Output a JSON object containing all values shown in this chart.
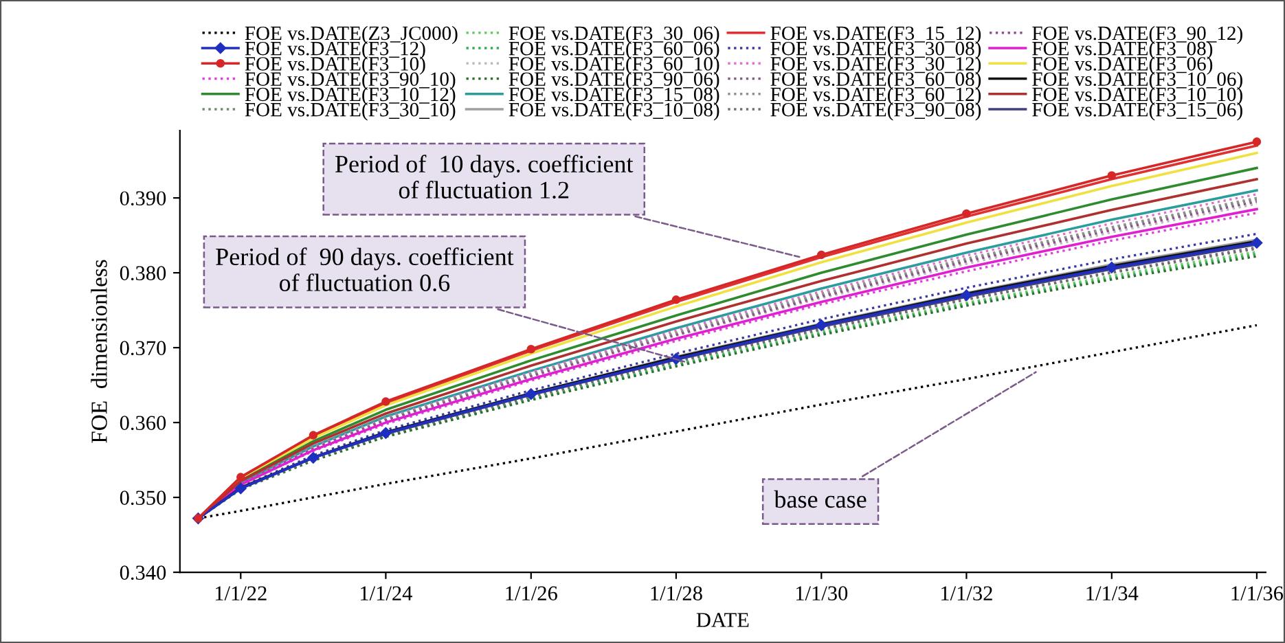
{
  "chart_data": {
    "type": "line",
    "xlabel": "DATE",
    "ylabel": "FOE  dimensionless",
    "x": [
      "2021-06-01",
      "2022-01-01",
      "2023-01-01",
      "2024-01-01",
      "2026-01-01",
      "2028-01-01",
      "2030-01-01",
      "2032-01-01",
      "2034-01-01",
      "2036-01-01"
    ],
    "xlim": [
      "2021-03-01",
      "2036-02-15"
    ],
    "xticks": [
      {
        "value": "2022-01-01",
        "label": "1/1/22"
      },
      {
        "value": "2024-01-01",
        "label": "1/1/24"
      },
      {
        "value": "2026-01-01",
        "label": "1/1/26"
      },
      {
        "value": "2028-01-01",
        "label": "1/1/28"
      },
      {
        "value": "2030-01-01",
        "label": "1/1/30"
      },
      {
        "value": "2032-01-01",
        "label": "1/1/32"
      },
      {
        "value": "2034-01-01",
        "label": "1/1/34"
      },
      {
        "value": "2036-01-01",
        "label": "1/1/36"
      }
    ],
    "ylim": [
      0.34,
      0.399
    ],
    "yticks": [
      {
        "value": 0.34,
        "label": "0.340"
      },
      {
        "value": 0.35,
        "label": "0.350"
      },
      {
        "value": 0.36,
        "label": "0.360"
      },
      {
        "value": 0.37,
        "label": "0.370"
      },
      {
        "value": 0.38,
        "label": "0.380"
      },
      {
        "value": 0.39,
        "label": "0.390"
      }
    ],
    "grid": false,
    "legend": "top",
    "series": [
      {
        "name": "FOE vs.DATE(Z3_JC000)",
        "color": "#000000",
        "line_style": "dotted",
        "values": [
          0.3472,
          0.3482,
          0.35,
          0.3518,
          0.3552,
          0.3588,
          0.3624,
          0.3658,
          0.3694,
          0.373
        ]
      },
      {
        "name": "FOE vs.DATE(F3_12)",
        "color": "#1f2fbf",
        "marker": "diamond",
        "values": [
          0.3472,
          0.3512,
          0.3553,
          0.3586,
          0.3638,
          0.3685,
          0.373,
          0.377,
          0.3807,
          0.384
        ]
      },
      {
        "name": "FOE vs.DATE(F3_10)",
        "color": "#d62728",
        "marker": "circle",
        "values": [
          0.3472,
          0.3527,
          0.3583,
          0.3628,
          0.3698,
          0.3764,
          0.3824,
          0.3879,
          0.393,
          0.3975
        ]
      },
      {
        "name": "FOE vs.DATE(F3_90_10)",
        "color": "#e040e0",
        "line_style": "dotted",
        "values": [
          0.3472,
          0.3517,
          0.3562,
          0.3598,
          0.3656,
          0.3709,
          0.3758,
          0.3802,
          0.3843,
          0.388
        ]
      },
      {
        "name": "FOE vs.DATE(F3_10_12)",
        "color": "#2e8b2e",
        "values": [
          0.3472,
          0.3523,
          0.3575,
          0.3617,
          0.3683,
          0.3743,
          0.38,
          0.3851,
          0.3898,
          0.394
        ]
      },
      {
        "name": "FOE vs.DATE(F3_30_10)",
        "color": "#6b8e6b",
        "line_style": "dotted",
        "values": [
          0.3472,
          0.3519,
          0.3566,
          0.3604,
          0.3664,
          0.3719,
          0.377,
          0.3817,
          0.386,
          0.3898
        ]
      },
      {
        "name": "FOE vs.DATE(F3_30_06)",
        "color": "#66cc66",
        "line_style": "dotted",
        "values": [
          0.3472,
          0.3511,
          0.355,
          0.3582,
          0.3632,
          0.3678,
          0.3721,
          0.376,
          0.3796,
          0.3828
        ]
      },
      {
        "name": "FOE vs.DATE(F3_60_06)",
        "color": "#33aa55",
        "line_style": "dotted",
        "values": [
          0.3472,
          0.3511,
          0.355,
          0.3581,
          0.3631,
          0.3677,
          0.3719,
          0.3758,
          0.3793,
          0.3825
        ]
      },
      {
        "name": "FOE vs.DATE(F3_60_10)",
        "color": "#bbbbbb",
        "line_style": "dotted",
        "values": [
          0.3472,
          0.3518,
          0.3564,
          0.3602,
          0.3661,
          0.3716,
          0.3766,
          0.3812,
          0.3854,
          0.3892
        ]
      },
      {
        "name": "FOE vs.DATE(F3_90_06)",
        "color": "#2f6f2f",
        "line_style": "dotted",
        "values": [
          0.3472,
          0.3511,
          0.3549,
          0.3581,
          0.363,
          0.3675,
          0.3717,
          0.3756,
          0.3791,
          0.3822
        ]
      },
      {
        "name": "FOE vs.DATE(F3_15_08)",
        "color": "#2a9d9d",
        "values": [
          0.3472,
          0.352,
          0.3568,
          0.3608,
          0.3669,
          0.3726,
          0.3779,
          0.3827,
          0.3871,
          0.391
        ]
      },
      {
        "name": "FOE vs.DATE(F3_10_08)",
        "color": "#a0a0a0",
        "values": [
          0.3472,
          0.3513,
          0.3554,
          0.3587,
          0.3639,
          0.3688,
          0.3732,
          0.3773,
          0.3811,
          0.3844
        ]
      },
      {
        "name": "FOE vs.DATE(F3_15_12)",
        "color": "#e03030",
        "values": [
          0.3472,
          0.3527,
          0.3582,
          0.3626,
          0.3696,
          0.3761,
          0.3821,
          0.3875,
          0.3925,
          0.397
        ]
      },
      {
        "name": "FOE vs.DATE(F3_30_08)",
        "color": "#3a3aa0",
        "line_style": "dotted",
        "values": [
          0.3472,
          0.3514,
          0.3556,
          0.359,
          0.3643,
          0.3692,
          0.3738,
          0.378,
          0.3818,
          0.3852
        ]
      },
      {
        "name": "FOE vs.DATE(F3_30_12)",
        "color": "#e070d0",
        "line_style": "dotted",
        "values": [
          0.3472,
          0.352,
          0.3567,
          0.3606,
          0.3667,
          0.3723,
          0.3775,
          0.3823,
          0.3866,
          0.3905
        ]
      },
      {
        "name": "FOE vs.DATE(F3_60_08)",
        "color": "#806080",
        "line_style": "dotted",
        "values": [
          0.3472,
          0.3512,
          0.3552,
          0.3584,
          0.3635,
          0.3682,
          0.3725,
          0.3765,
          0.3801,
          0.3834
        ]
      },
      {
        "name": "FOE vs.DATE(F3_60_12)",
        "color": "#909090",
        "line_style": "dotted",
        "values": [
          0.3472,
          0.3519,
          0.3566,
          0.3605,
          0.3665,
          0.372,
          0.3772,
          0.3819,
          0.3861,
          0.39
        ]
      },
      {
        "name": "FOE vs.DATE(F3_90_08)",
        "color": "#707070",
        "line_style": "dotted",
        "values": [
          0.3472,
          0.3512,
          0.3551,
          0.3584,
          0.3634,
          0.3681,
          0.3724,
          0.3764,
          0.38,
          0.3832
        ]
      },
      {
        "name": "FOE vs.DATE(F3_90_12)",
        "color": "#905090",
        "line_style": "dotted",
        "values": [
          0.3472,
          0.3519,
          0.3565,
          0.3603,
          0.3662,
          0.3717,
          0.3768,
          0.3815,
          0.3857,
          0.3895
        ]
      },
      {
        "name": "FOE vs.DATE(F3_08)",
        "color": "#e020d0",
        "values": [
          0.3472,
          0.3517,
          0.3563,
          0.36,
          0.3658,
          0.3712,
          0.3761,
          0.3807,
          0.3848,
          0.3885
        ]
      },
      {
        "name": "FOE vs.DATE(F3_06)",
        "color": "#f0e040",
        "values": [
          0.3472,
          0.3526,
          0.3579,
          0.3623,
          0.3692,
          0.3755,
          0.3814,
          0.3867,
          0.3916,
          0.396
        ]
      },
      {
        "name": "FOE vs.DATE(F3_10_06)",
        "color": "#111111",
        "values": [
          0.3472,
          0.3513,
          0.3553,
          0.3587,
          0.3639,
          0.3687,
          0.3731,
          0.3772,
          0.3809,
          0.3842
        ]
      },
      {
        "name": "FOE vs.DATE(F3_10_10)",
        "color": "#b03030",
        "values": [
          0.3472,
          0.3522,
          0.3572,
          0.3612,
          0.3676,
          0.3735,
          0.3789,
          0.3839,
          0.3884,
          0.3925
        ]
      },
      {
        "name": "FOE vs.DATE(F3_15_06)",
        "color": "#404080",
        "values": [
          0.3472,
          0.3512,
          0.3553,
          0.3585,
          0.3637,
          0.3684,
          0.3728,
          0.3768,
          0.3805,
          0.3838
        ]
      }
    ],
    "annotations": [
      {
        "text": "Period of  10 days. coefficient\nof fluctuation 1.2",
        "x": "2029-10-01",
        "y": 0.382
      },
      {
        "text": "Period of  90 days. coefficient\nof fluctuation 0.6",
        "x": "2028-03-01",
        "y": 0.368
      },
      {
        "text": "base case",
        "x": "2033-01-01",
        "y": 0.367
      }
    ]
  }
}
